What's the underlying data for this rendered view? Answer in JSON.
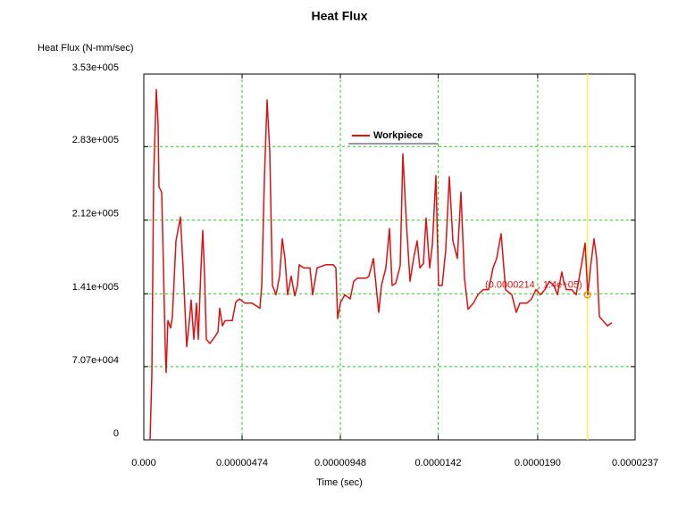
{
  "chart_data": {
    "type": "line",
    "title": "Heat Flux",
    "y_label": "Heat Flux (N-mm/sec)",
    "x_label": "Time (sec)",
    "xlim": [
      0,
      2.37e-05
    ],
    "ylim": [
      0,
      353000
    ],
    "xticks": [
      {
        "value": 0,
        "label": "0.000"
      },
      {
        "value": 4.74e-06,
        "label": "0.00000474"
      },
      {
        "value": 9.48e-06,
        "label": "0.00000948"
      },
      {
        "value": 1.42e-05,
        "label": "0.0000142"
      },
      {
        "value": 1.9e-05,
        "label": "0.0000190"
      },
      {
        "value": 2.37e-05,
        "label": "0.0000237"
      }
    ],
    "yticks": [
      0,
      {
        "value": 70700,
        "label": "7.07e+004"
      },
      {
        "value": 141000,
        "label": "1.41e+005"
      },
      {
        "value": 212000,
        "label": "2.12e+005"
      },
      {
        "value": 283000,
        "label": "2.83e+005"
      },
      {
        "value": 353000,
        "label": "3.53e+005"
      }
    ],
    "grid": true,
    "legend": "top center",
    "x": [
      3.02e-07,
      3.88e-07,
      4.74e-07,
      6.03e-07,
      6.89e-07,
      7.33e-07,
      8.62e-07,
      9.48e-07,
      1.034e-06,
      1.077e-06,
      1.163e-06,
      1.293e-06,
      1.379e-06,
      1.551e-06,
      1.767e-06,
      1.896e-06,
      2.068e-06,
      2.198e-06,
      2.284e-06,
      2.413e-06,
      2.542e-06,
      2.628e-06,
      2.758e-06,
      2.844e-06,
      2.93e-06,
      3.016e-06,
      3.189e-06,
      3.404e-06,
      3.576e-06,
      3.663e-06,
      3.792e-06,
      3.921e-06,
      4.266e-06,
      4.438e-06,
      4.611e-06,
      4.869e-06,
      5.214e-06,
      5.602e-06,
      5.688e-06,
      5.817e-06,
      5.946e-06,
      6.076e-06,
      6.205e-06,
      6.377e-06,
      6.55e-06,
      6.679e-06,
      6.808e-06,
      6.937e-06,
      7.11e-06,
      7.282e-06,
      7.411e-06,
      7.498e-06,
      7.713e-06,
      8.015e-06,
      8.144e-06,
      8.359e-06,
      8.79e-06,
      9.135e-06,
      9.264e-06,
      9.351e-06,
      9.48e-06,
      9.695e-06,
      9.954e-06,
      1.0126e-05,
      1.0299e-05,
      1.0729e-05,
      1.0859e-05,
      1.1074e-05,
      1.1203e-05,
      1.1333e-05,
      1.1462e-05,
      1.1677e-05,
      1.185e-05,
      1.1979e-05,
      1.2151e-05,
      1.2367e-05,
      1.2496e-05,
      1.2668e-05,
      1.2841e-05,
      1.3013e-05,
      1.3186e-05,
      1.3315e-05,
      1.3487e-05,
      1.3616e-05,
      1.3789e-05,
      1.3918e-05,
      1.409e-05,
      1.422e-05,
      1.4392e-05,
      1.4564e-05,
      1.4737e-05,
      1.4909e-05,
      1.5125e-05,
      1.5297e-05,
      1.5469e-05,
      1.5642e-05,
      1.59e-05,
      1.6116e-05,
      1.6374e-05,
      1.6633e-05,
      1.6848e-05,
      1.7021e-05,
      1.7236e-05,
      1.7451e-05,
      1.7753e-05,
      1.7969e-05,
      1.8141e-05,
      1.8486e-05,
      1.8701e-05,
      1.8917e-05,
      1.9132e-05,
      1.9347e-05,
      1.9563e-05,
      1.9778e-05,
      1.9951e-05,
      2.0166e-05,
      2.0252e-05,
      2.0382e-05,
      2.064e-05,
      2.0856e-05,
      2.1114e-05,
      2.1287e-05,
      2.1416e-05,
      2.1545e-05,
      2.1717e-05,
      2.1847e-05,
      2.1976e-05,
      2.2148e-05,
      2.2364e-05,
      2.2579e-05
    ],
    "series": [
      {
        "name": "Workpiece",
        "color": "#dd1111",
        "values": [
          0,
          63000,
          252000,
          338000,
          304000,
          244000,
          239000,
          166000,
          89000,
          65000,
          115000,
          108000,
          119000,
          192000,
          215000,
          166000,
          90000,
          115000,
          135000,
          97000,
          132000,
          97000,
          166000,
          202000,
          158000,
          97000,
          93000,
          99000,
          104000,
          127000,
          110000,
          115000,
          115000,
          133000,
          136000,
          132000,
          132000,
          127000,
          149000,
          252000,
          328000,
          278000,
          149000,
          140000,
          158000,
          194000,
          175000,
          140000,
          158000,
          139000,
          149000,
          169000,
          166000,
          166000,
          140000,
          166000,
          169000,
          169000,
          166000,
          117000,
          132000,
          140000,
          136000,
          153000,
          156000,
          156000,
          158000,
          175000,
          149000,
          123000,
          149000,
          166000,
          204000,
          149000,
          151000,
          168000,
          276000,
          209000,
          153000,
          175000,
          192000,
          166000,
          170000,
          214000,
          166000,
          188000,
          255000,
          149000,
          149000,
          183000,
          254000,
          192000,
          175000,
          239000,
          156000,
          126000,
          132000,
          140000,
          145000,
          145000,
          166000,
          175000,
          199000,
          145000,
          140000,
          123000,
          132000,
          132000,
          136000,
          145000,
          140000,
          145000,
          153000,
          149000,
          140000,
          162000,
          153000,
          145000,
          145000,
          140000,
          169000,
          190000,
          140000,
          166000,
          194000,
          175000,
          119000,
          115000,
          110000,
          113000
        ]
      }
    ],
    "cursor": {
      "x": 2.14e-05,
      "y": 140000,
      "label": "(0.0000214 , 1.4e+05)",
      "color": "#ffee55",
      "marker_color": "#ee9900"
    }
  }
}
